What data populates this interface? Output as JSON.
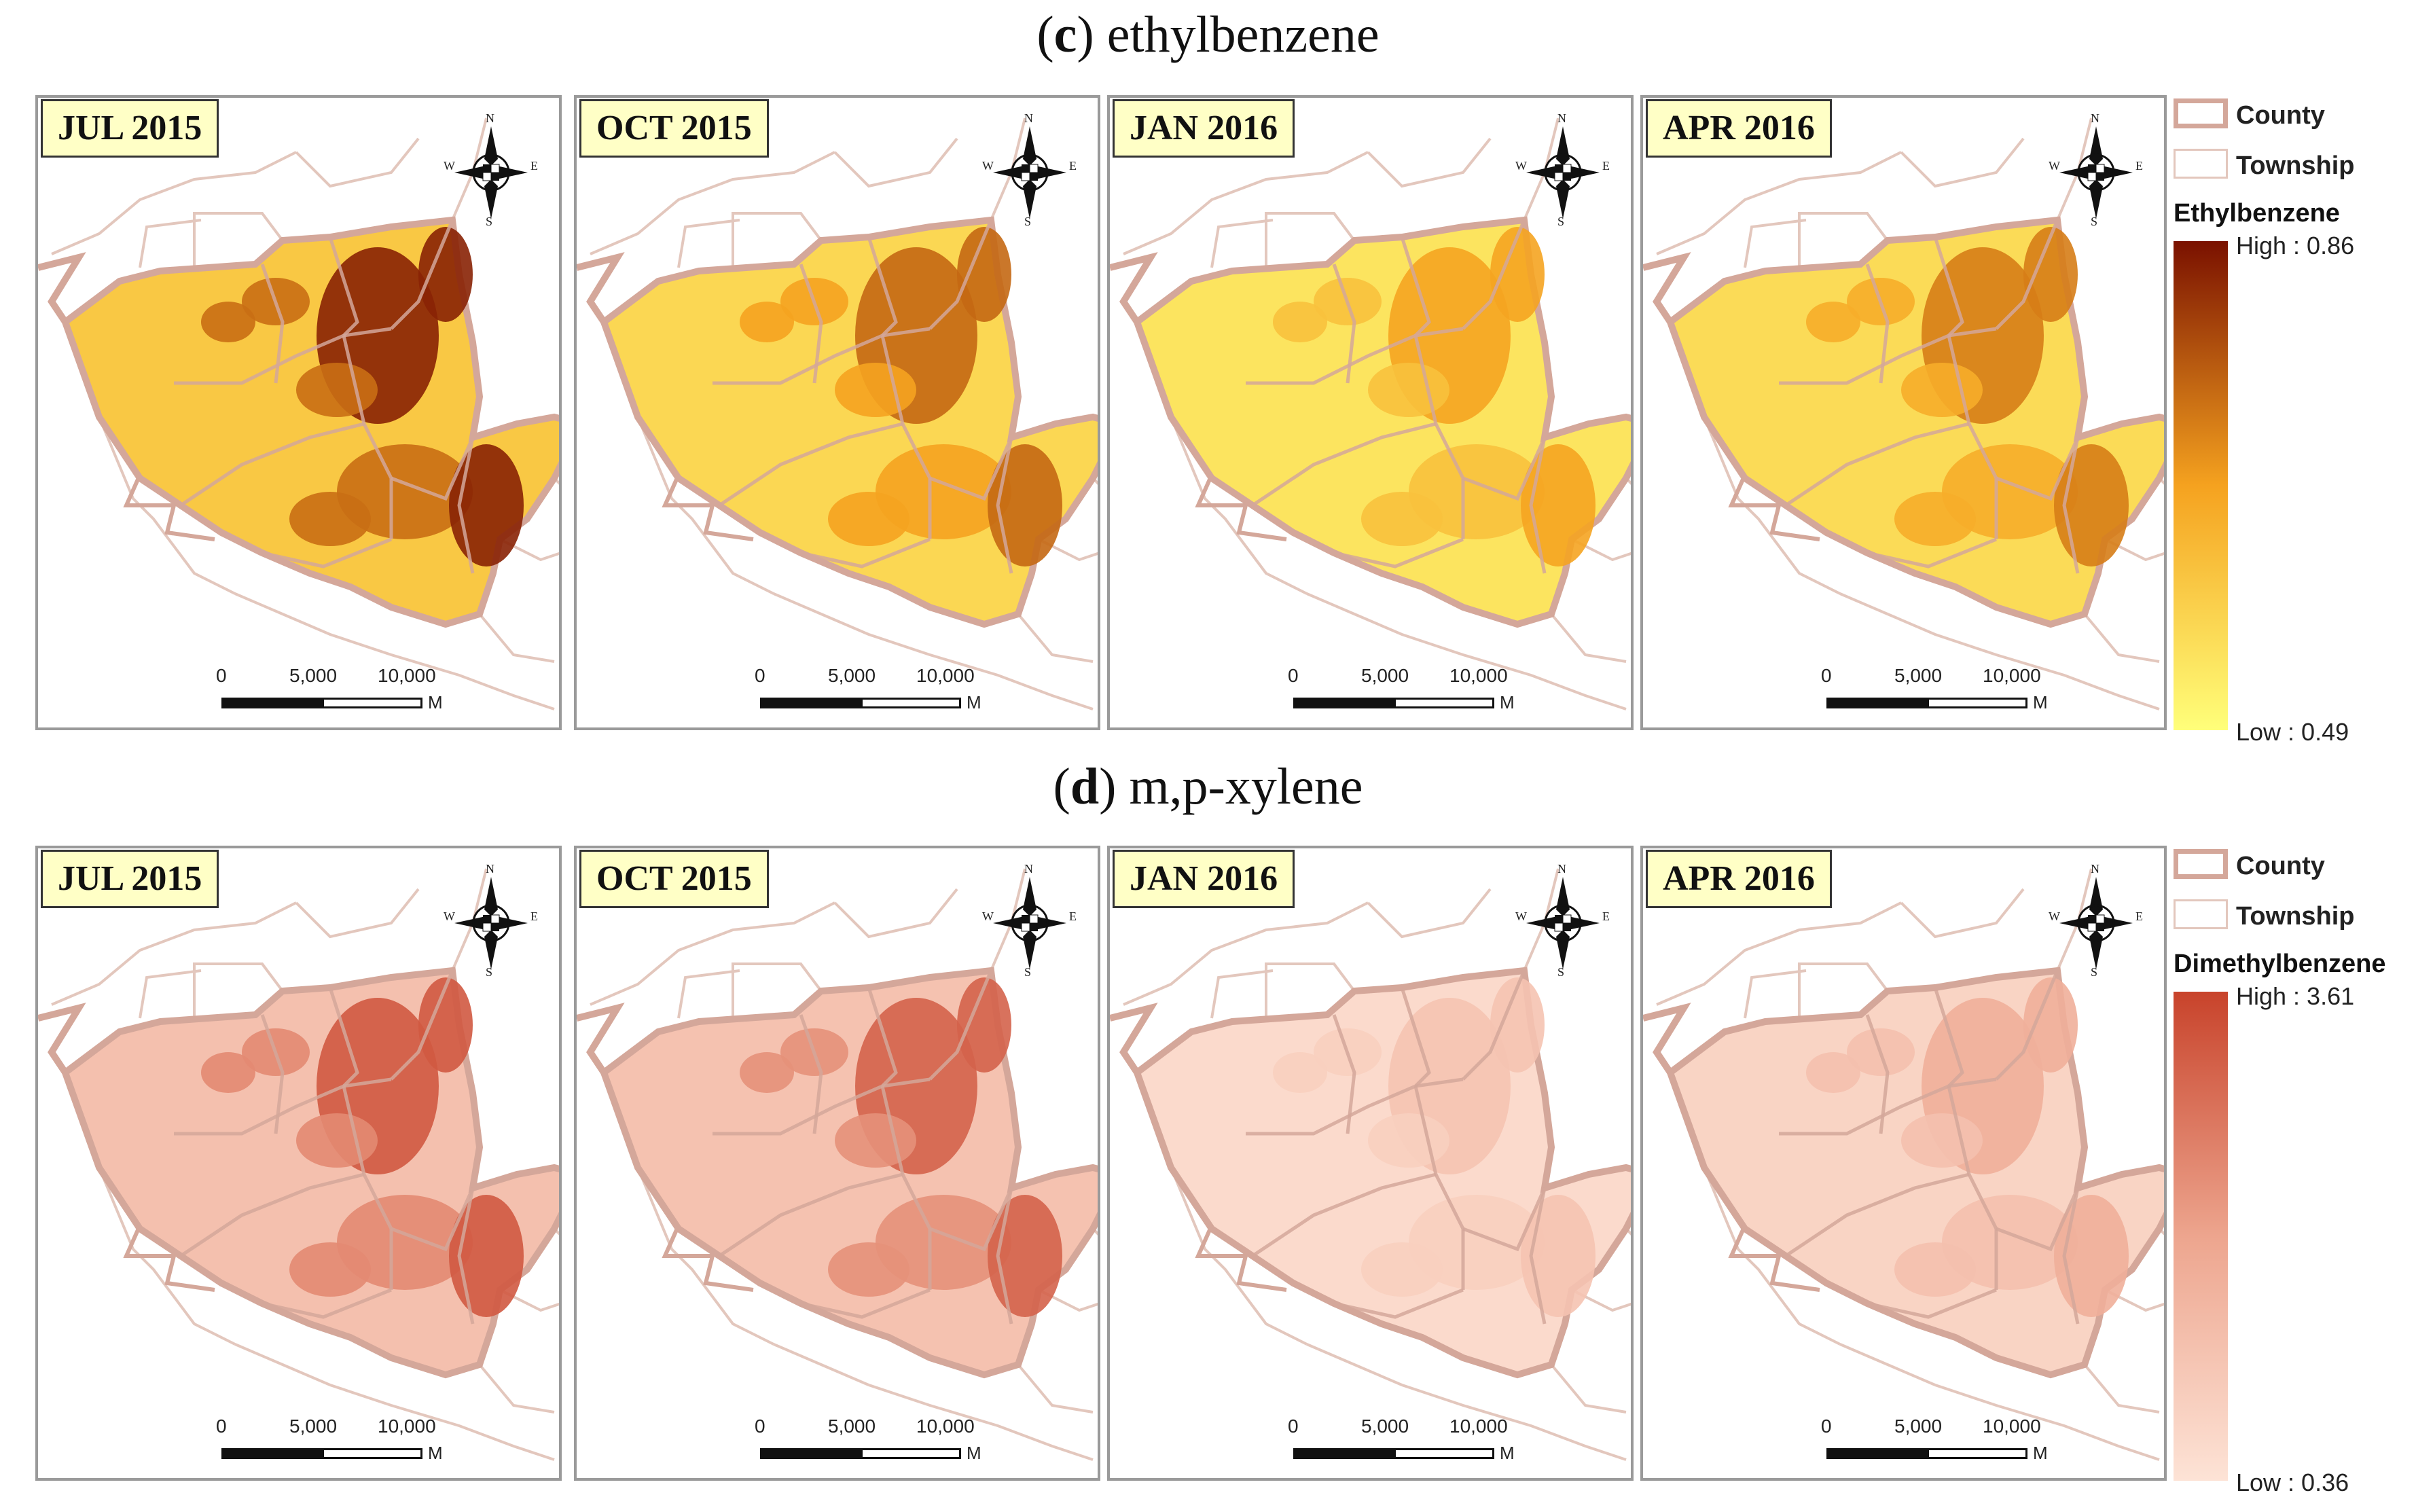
{
  "sections": [
    {
      "title_letter": "c",
      "title_text": "ethylbenzene",
      "panels": [
        {
          "date": "JUL 2015",
          "level": 0.85
        },
        {
          "date": "OCT 2015",
          "level": 0.62
        },
        {
          "date": "JAN 2016",
          "level": 0.42
        },
        {
          "date": "APR 2016",
          "level": 0.55
        }
      ],
      "legend": {
        "county_label": "County",
        "township_label": "Township",
        "variable": "Ethylbenzene",
        "high": "High : 0.86",
        "low": "Low : 0.49",
        "color_high": "#7a1100",
        "color_mid": "#f5a21f",
        "color_low": "#ffff7a"
      }
    },
    {
      "title_letter": "d",
      "title_text": "m,p-xylene",
      "panels": [
        {
          "date": "JUL 2015",
          "level": 0.8
        },
        {
          "date": "OCT 2015",
          "level": 0.75
        },
        {
          "date": "JAN 2016",
          "level": 0.2
        },
        {
          "date": "APR 2016",
          "level": 0.35
        }
      ],
      "legend": {
        "county_label": "County",
        "township_label": "Township",
        "variable": "Dimethylbenzene",
        "high": "High : 3.61",
        "low": "Low : 0.36",
        "color_high": "#c8432b",
        "color_mid": "#eda58e",
        "color_low": "#fde3d6"
      }
    }
  ],
  "scale_bar": {
    "zero": "0",
    "mid": "5,000",
    "max": "10,000",
    "unit": "M"
  },
  "compass": {
    "n": "N",
    "s": "S",
    "w": "W",
    "e": "E"
  },
  "colors": {
    "county_border": "#d4a79a",
    "township_border": "#e3c7bd",
    "frame": "#9a9a9a"
  }
}
